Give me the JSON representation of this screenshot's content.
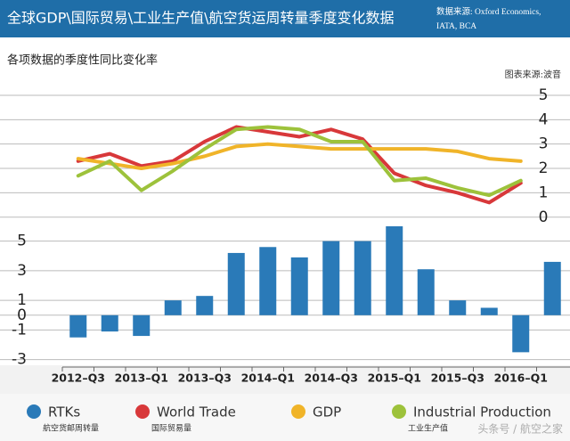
{
  "header": {
    "title": "全球GDP\\国际贸易\\工业生产值\\航空货运周转量季度变化数据",
    "source": [
      "数据来源: Oxford Economics,",
      "IATA, BCA"
    ]
  },
  "subtitle": "各项数据的季度性同比变化率",
  "credit": "图表来源:波音",
  "watermark": "头条号 / 航空之家",
  "chart_data": [
    {
      "type": "line",
      "axis_side": "right",
      "ylim": [
        -0.3,
        5.4
      ],
      "yticks": [
        0,
        1,
        2,
        3,
        4,
        5
      ],
      "grid": true,
      "series": [
        {
          "name": "World Trade",
          "note": "国际贸易量",
          "color": "#d8383a",
          "values": [
            2.3,
            2.6,
            2.1,
            2.3,
            3.1,
            3.7,
            3.5,
            3.3,
            3.6,
            3.2,
            1.8,
            1.3,
            1.0,
            0.6,
            1.4,
            null
          ]
        },
        {
          "name": "GDP",
          "color": "#f0b429",
          "values": [
            2.4,
            2.2,
            2.0,
            2.2,
            2.5,
            2.9,
            3.0,
            2.9,
            2.8,
            2.8,
            2.8,
            2.8,
            2.7,
            2.4,
            2.3,
            null
          ]
        },
        {
          "name": "Industrial Production",
          "note": "工业生产值",
          "color": "#9dc23b",
          "values": [
            1.7,
            2.3,
            1.1,
            1.9,
            2.8,
            3.6,
            3.7,
            3.6,
            3.1,
            3.1,
            1.5,
            1.6,
            1.2,
            0.9,
            1.5,
            null
          ]
        }
      ]
    },
    {
      "type": "bar",
      "axis_side": "left",
      "ylim": [
        -3.5,
        6
      ],
      "yticks": [
        -3,
        -1,
        0,
        1,
        3,
        5
      ],
      "grid": true,
      "categories": [
        "2012–Q3",
        null,
        "2013–Q1",
        null,
        "2013–Q3",
        null,
        "2014–Q1",
        null,
        "2014–Q3",
        null,
        "2015–Q1",
        null,
        "2015–Q3",
        null,
        "2016–Q1",
        null
      ],
      "series": [
        {
          "name": "RTKs",
          "note": "航空货邮周转量",
          "color": "#2a7ab8",
          "values": [
            -1.5,
            -1.1,
            -1.4,
            1.0,
            1.3,
            4.2,
            4.6,
            3.9,
            5.0,
            5.0,
            6.0,
            3.1,
            1.0,
            0.5,
            -2.5,
            3.6
          ]
        }
      ]
    }
  ]
}
